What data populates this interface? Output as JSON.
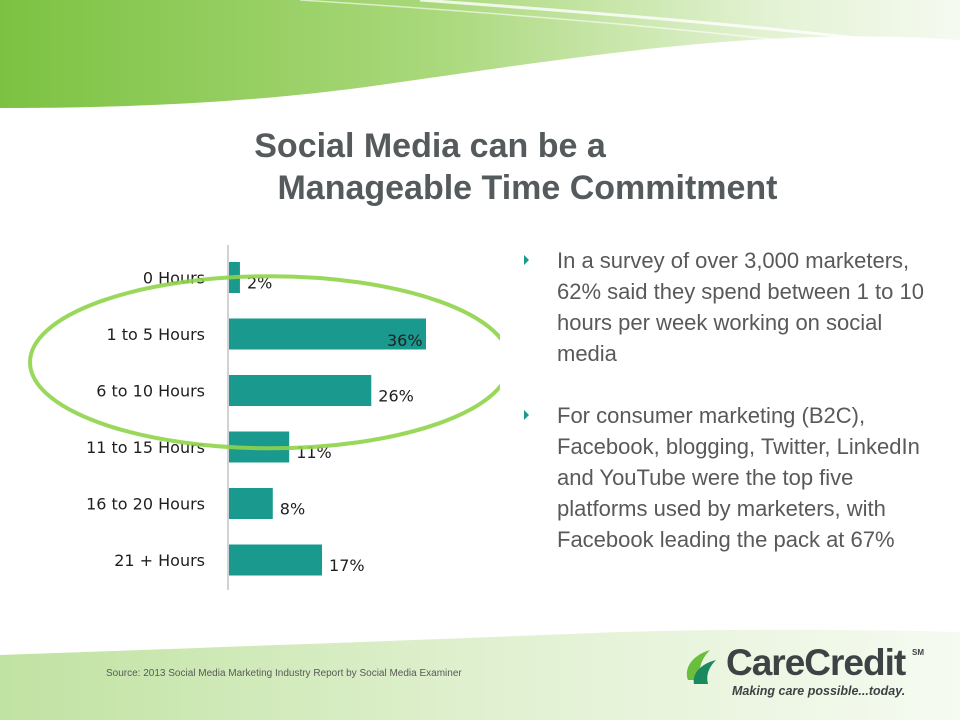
{
  "title": {
    "line1": "Social Media can be a",
    "line2": "Manageable Time Commitment"
  },
  "colors": {
    "bar": "#1a9a8e",
    "highlight": "#8fd44a",
    "title": "#555a5c",
    "brand_green": "#6bbd3e"
  },
  "chart_data": {
    "type": "bar",
    "orientation": "horizontal",
    "categories": [
      "0 Hours",
      "1 to 5 Hours",
      "6 to 10 Hours",
      "11 to 15 Hours",
      "16 to 20 Hours",
      "21 + Hours"
    ],
    "values": [
      2,
      36,
      26,
      11,
      8,
      17
    ],
    "data_labels": [
      "2%",
      "36%",
      "26%",
      "11%",
      "8%",
      "17%"
    ],
    "xlim": [
      0,
      40
    ],
    "grid": false,
    "highlighted_categories": [
      "1 to 5 Hours",
      "6 to 10 Hours"
    ]
  },
  "bullets": [
    "In a survey of over 3,000 marketers, 62% said they spend between 1 to 10 hours per week working on social media",
    "For consumer marketing (B2C), Facebook, blogging, Twitter, LinkedIn and YouTube were the top five platforms used by marketers, with Facebook leading the pack at 67%"
  ],
  "source": "Source: 2013 Social Media Marketing Industry Report by Social Media Examiner",
  "logo": {
    "name": "CareCredit",
    "mark": "SM",
    "tagline": "Making care possible...today.",
    "icon": "carecredit-leaf-icon"
  }
}
